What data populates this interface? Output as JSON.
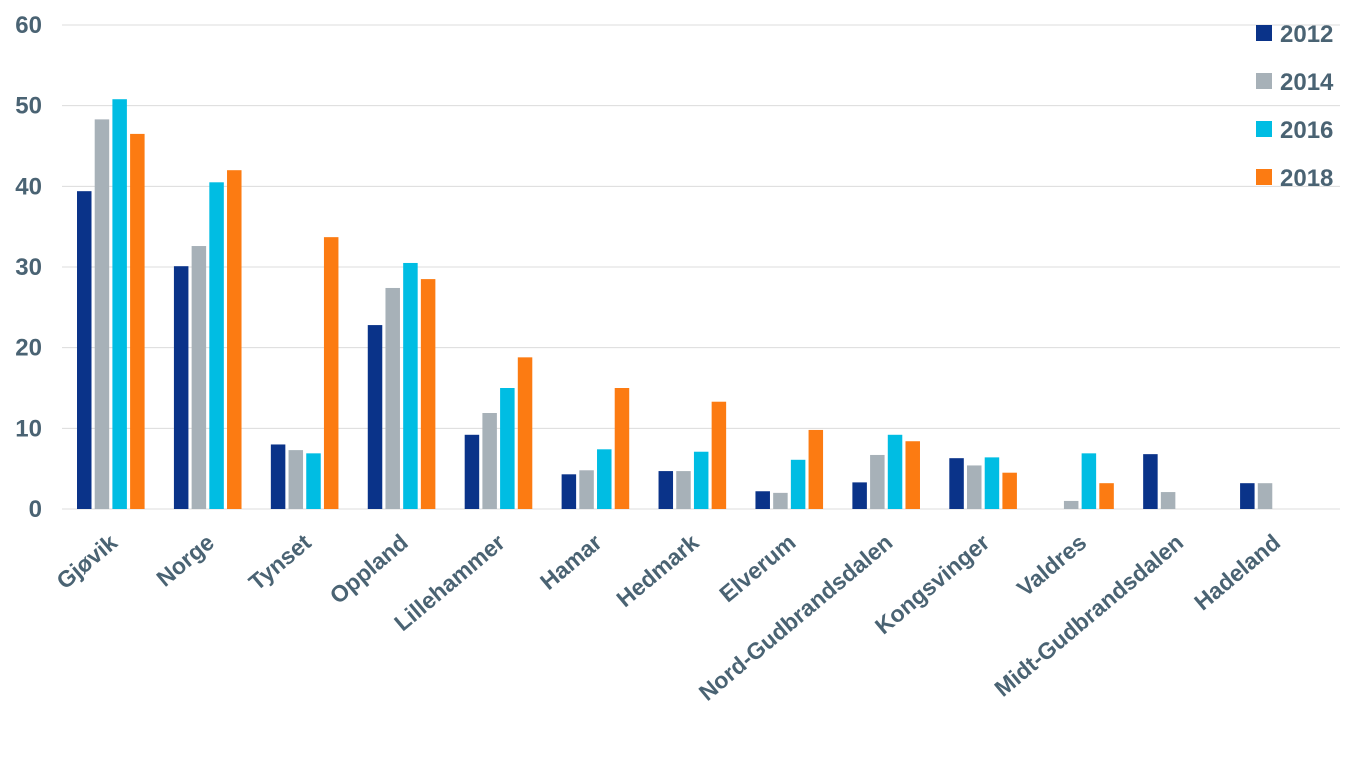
{
  "chart_data": {
    "type": "bar",
    "title": "",
    "xlabel": "",
    "ylabel": "",
    "ylim": [
      0,
      60
    ],
    "yticks": [
      0,
      10,
      20,
      30,
      40,
      50,
      60
    ],
    "grid": true,
    "legend_position": "top-right",
    "categories": [
      "Gjøvik",
      "Norge",
      "Tynset",
      "Oppland",
      "Lillehammer",
      "Hamar",
      "Hedmark",
      "Elverum",
      "Nord-Gudbrandsdalen",
      "Kongsvinger",
      "Valdres",
      "Midt-Gudbrandsdalen",
      "Hadeland"
    ],
    "series": [
      {
        "name": "2012",
        "color": "#0a3389",
        "values": [
          39.4,
          30.1,
          8.0,
          22.8,
          9.2,
          4.3,
          4.7,
          2.2,
          3.3,
          6.3,
          0,
          6.8,
          3.2
        ]
      },
      {
        "name": "2014",
        "color": "#a7b1b8",
        "values": [
          48.3,
          32.6,
          7.3,
          27.4,
          11.9,
          4.8,
          4.7,
          2.0,
          6.7,
          5.4,
          1.0,
          2.1,
          3.2
        ]
      },
      {
        "name": "2016",
        "color": "#00bde3",
        "values": [
          50.8,
          40.5,
          6.9,
          30.5,
          15.0,
          7.4,
          7.1,
          6.1,
          9.2,
          6.4,
          6.9,
          0,
          0
        ]
      },
      {
        "name": "2018",
        "color": "#fc7b12",
        "values": [
          46.5,
          42.0,
          33.7,
          28.5,
          18.8,
          15.0,
          13.3,
          9.8,
          8.4,
          4.5,
          3.2,
          0,
          0
        ]
      }
    ]
  }
}
